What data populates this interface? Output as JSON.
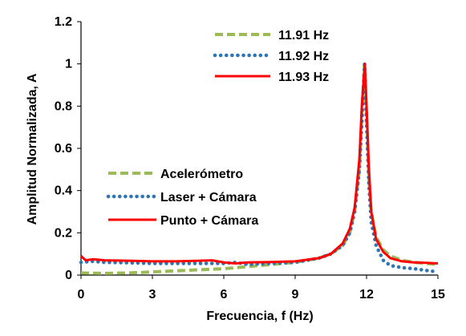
{
  "chart_data": {
    "type": "line",
    "title": "",
    "xlabel": "Frecuencia, f (Hz)",
    "ylabel": "Amplitud Normalizada, A",
    "xlim": [
      0,
      15
    ],
    "ylim": [
      0,
      1.2
    ],
    "x_ticks": [
      "0",
      "3",
      "6",
      "9",
      "12",
      "15"
    ],
    "y_ticks": [
      "0",
      "0.2",
      "0.4",
      "0.6",
      "0.8",
      "1",
      "1.2"
    ],
    "grid": false,
    "legend_top_right": [
      {
        "label": "11.91 Hz",
        "color": "#9bbb59",
        "style": "dashed"
      },
      {
        "label": "11.92 Hz",
        "color": "#2e75b6",
        "style": "dotted"
      },
      {
        "label": "11.93 Hz",
        "color": "#ff0000",
        "style": "solid"
      }
    ],
    "legend_middle_left": [
      {
        "label": "Acelerómetro",
        "color": "#9bbb59",
        "style": "dashed"
      },
      {
        "label": "Laser + Cámara",
        "color": "#2e75b6",
        "style": "dotted"
      },
      {
        "label": "Punto + Cámara",
        "color": "#ff0000",
        "style": "solid"
      }
    ],
    "series": [
      {
        "color": "#9bbb59",
        "style": "dashed",
        "x": [
          0,
          1,
          2,
          3,
          4,
          5,
          6,
          7,
          8,
          9,
          10,
          10.5,
          11,
          11.3,
          11.5,
          11.7,
          11.8,
          11.91,
          12.0,
          12.1,
          12.2,
          12.4,
          12.7,
          13,
          13.5,
          14,
          14.5,
          15
        ],
        "y": [
          0.01,
          0.008,
          0.01,
          0.015,
          0.02,
          0.025,
          0.03,
          0.04,
          0.05,
          0.06,
          0.08,
          0.1,
          0.14,
          0.2,
          0.3,
          0.5,
          0.75,
          1.0,
          0.75,
          0.45,
          0.3,
          0.18,
          0.12,
          0.09,
          0.07,
          0.06,
          0.055,
          0.05
        ]
      },
      {
        "color": "#2e75b6",
        "style": "dotted",
        "x": [
          0,
          0.5,
          1,
          2,
          3,
          4,
          5,
          6,
          6.5,
          7,
          8,
          9,
          10,
          10.5,
          11,
          11.3,
          11.5,
          11.7,
          11.8,
          11.92,
          12.0,
          12.1,
          12.2,
          12.4,
          12.7,
          13,
          13.5,
          14,
          14.5,
          15
        ],
        "y": [
          0.06,
          0.065,
          0.06,
          0.058,
          0.055,
          0.055,
          0.055,
          0.055,
          0.06,
          0.05,
          0.055,
          0.06,
          0.08,
          0.1,
          0.14,
          0.2,
          0.3,
          0.5,
          0.72,
          1.0,
          0.72,
          0.42,
          0.25,
          0.14,
          0.07,
          0.045,
          0.035,
          0.03,
          0.022,
          0.015
        ]
      },
      {
        "color": "#ff0000",
        "style": "solid",
        "x": [
          0,
          0.2,
          0.5,
          1,
          2,
          3,
          4,
          5,
          5.5,
          6,
          6.5,
          7,
          8,
          9,
          10,
          10.5,
          11,
          11.3,
          11.5,
          11.7,
          11.8,
          11.93,
          12.0,
          12.1,
          12.2,
          12.4,
          12.7,
          13,
          13.5,
          14,
          14.5,
          15
        ],
        "y": [
          0.09,
          0.07,
          0.075,
          0.07,
          0.068,
          0.065,
          0.065,
          0.068,
          0.07,
          0.06,
          0.055,
          0.06,
          0.062,
          0.065,
          0.08,
          0.1,
          0.15,
          0.22,
          0.32,
          0.55,
          0.8,
          1.0,
          0.8,
          0.5,
          0.3,
          0.17,
          0.11,
          0.08,
          0.065,
          0.06,
          0.058,
          0.055
        ]
      }
    ]
  }
}
